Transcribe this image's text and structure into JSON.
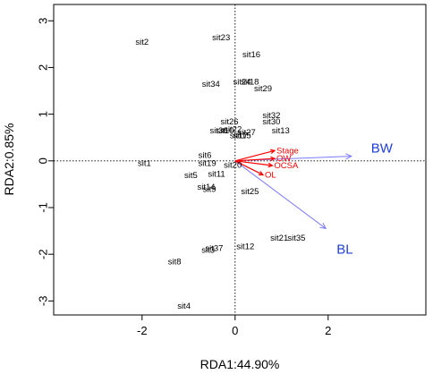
{
  "chart_data": {
    "type": "scatter",
    "title": "",
    "xlabel": "RDA1:44.90%",
    "ylabel": "RDA2:0.85%",
    "xlim": [
      -3.9,
      4.1
    ],
    "ylim": [
      -3.3,
      3.35
    ],
    "xticks": [
      "-2",
      "0",
      "2"
    ],
    "yticks": [
      "-3",
      "-2",
      "-1",
      "0",
      "1",
      "2",
      "3"
    ],
    "xtick_values": [
      -2,
      0,
      2
    ],
    "ytick_values": [
      -3,
      -2,
      -1,
      0,
      1,
      2,
      3
    ],
    "reference_lines": {
      "x": 0,
      "y": 0,
      "style": "dotted"
    },
    "sites": [
      {
        "label": "sit2",
        "x": -2.0,
        "y": 2.55
      },
      {
        "label": "sit23",
        "x": -0.3,
        "y": 2.65
      },
      {
        "label": "sit16",
        "x": 0.35,
        "y": 2.28
      },
      {
        "label": "sit24",
        "x": 0.15,
        "y": 1.7
      },
      {
        "label": "sit18",
        "x": 0.32,
        "y": 1.7
      },
      {
        "label": "sit34",
        "x": -0.52,
        "y": 1.65
      },
      {
        "label": "sit29",
        "x": 0.6,
        "y": 1.55
      },
      {
        "label": "sit32",
        "x": 0.78,
        "y": 0.98
      },
      {
        "label": "sit30",
        "x": 0.78,
        "y": 0.85
      },
      {
        "label": "sit26",
        "x": -0.12,
        "y": 0.85
      },
      {
        "label": "sit13",
        "x": 0.98,
        "y": 0.65
      },
      {
        "label": "sit36",
        "x": -0.35,
        "y": 0.65
      },
      {
        "label": "sit10",
        "x": -0.22,
        "y": 0.65
      },
      {
        "label": "sit22",
        "x": -0.05,
        "y": 0.68
      },
      {
        "label": "sit27",
        "x": 0.25,
        "y": 0.62
      },
      {
        "label": "sit15",
        "x": 0.15,
        "y": 0.55
      },
      {
        "label": "sit17",
        "x": 0.08,
        "y": 0.55
      },
      {
        "label": "sit6",
        "x": -0.65,
        "y": 0.13
      },
      {
        "label": "sit1",
        "x": -1.95,
        "y": -0.05
      },
      {
        "label": "sit19",
        "x": -0.6,
        "y": -0.05
      },
      {
        "label": "sit20",
        "x": -0.05,
        "y": -0.08
      },
      {
        "label": "sit5",
        "x": -0.95,
        "y": -0.3
      },
      {
        "label": "sit11",
        "x": -0.4,
        "y": -0.28
      },
      {
        "label": "sit14",
        "x": -0.62,
        "y": -0.55
      },
      {
        "label": "sit9",
        "x": -0.55,
        "y": -0.6
      },
      {
        "label": "sit25",
        "x": 0.32,
        "y": -0.65
      },
      {
        "label": "sit21",
        "x": 0.95,
        "y": -1.65
      },
      {
        "label": "sit35",
        "x": 1.32,
        "y": -1.65
      },
      {
        "label": "sit12",
        "x": 0.22,
        "y": -1.83
      },
      {
        "label": "sit37",
        "x": -0.45,
        "y": -1.87
      },
      {
        "label": "sit3",
        "x": -0.58,
        "y": -1.9
      },
      {
        "label": "sit8",
        "x": -1.3,
        "y": -2.15
      },
      {
        "label": "sit4",
        "x": -1.1,
        "y": -3.1
      }
    ],
    "env_vectors": [
      {
        "label": "Stage",
        "x": 0.85,
        "y": 0.22
      },
      {
        "label": "OW",
        "x": 0.85,
        "y": 0.05
      },
      {
        "label": "OCSA",
        "x": 0.8,
        "y": -0.1
      },
      {
        "label": "OL",
        "x": 0.6,
        "y": -0.3
      }
    ],
    "bio_vectors": [
      {
        "label": "BW",
        "x": 2.5,
        "y": 0.1
      },
      {
        "label": "BL",
        "x": 1.95,
        "y": -1.45
      }
    ],
    "colors": {
      "sites": "#000000",
      "env_vectors": "#ff0000",
      "bio_vectors": "#7b7bff",
      "bio_labels": "#1f3fd8",
      "axes": "#000000"
    }
  }
}
